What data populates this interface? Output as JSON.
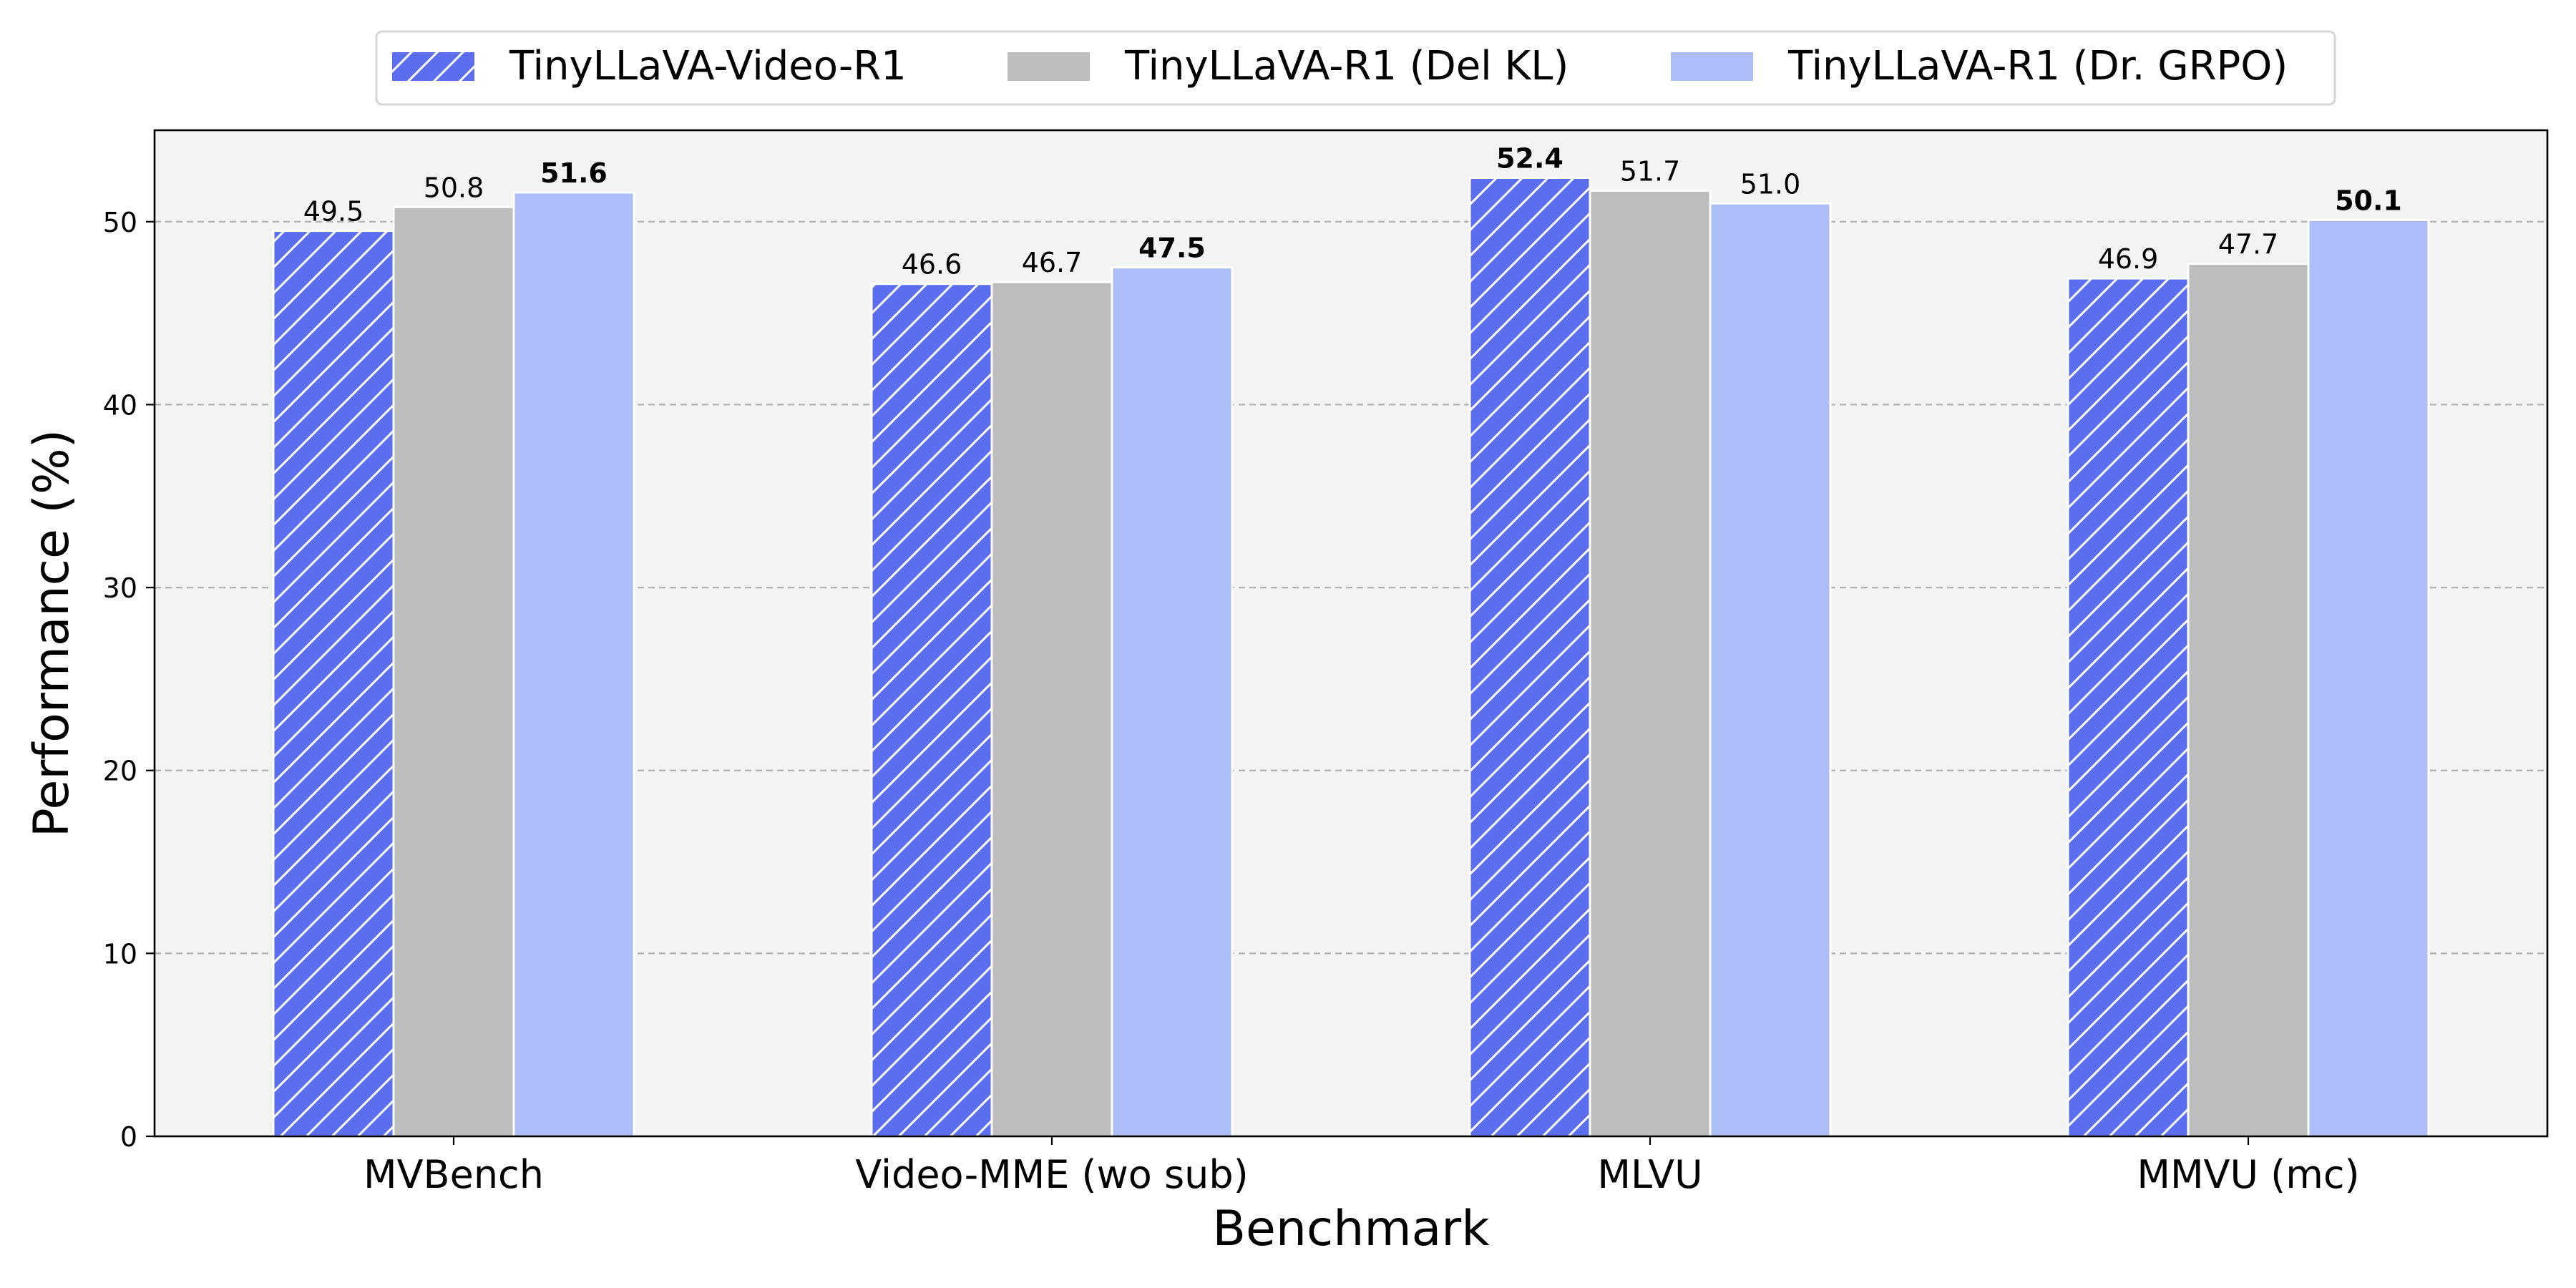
{
  "chart_data": {
    "type": "bar",
    "title": "",
    "xlabel": "Benchmark",
    "ylabel": "Performance (%)",
    "ylim": [
      0,
      55
    ],
    "yticks": [
      0,
      10,
      20,
      30,
      40,
      50
    ],
    "grid": "horizontal dashed",
    "legend_position": "top-center",
    "categories": [
      "MVBench",
      "Video-MME (wo sub)",
      "MLVU",
      "MMVU (mc)"
    ],
    "series": [
      {
        "name": "TinyLLaVA-Video-R1",
        "values": [
          49.5,
          46.6,
          52.4,
          46.9
        ],
        "labels": [
          "49.5",
          "46.6",
          "52.4",
          "46.9"
        ],
        "color": "#5b6ef0",
        "hatch": true
      },
      {
        "name": "TinyLLaVA-R1 (Del KL)",
        "values": [
          50.8,
          46.7,
          51.7,
          47.7
        ],
        "labels": [
          "50.8",
          "46.7",
          "51.7",
          "47.7"
        ],
        "color": "#bdbdbd",
        "hatch": false
      },
      {
        "name": "TinyLLaVA-R1 (Dr. GRPO)",
        "values": [
          51.6,
          47.5,
          51.0,
          50.1
        ],
        "labels": [
          "51.6",
          "47.5",
          "51.0",
          "50.1"
        ],
        "color": "#adbdf7",
        "hatch": false
      }
    ],
    "bold_labels": [
      [
        0,
        2
      ],
      [
        1,
        2
      ],
      [
        2,
        0
      ],
      [
        3,
        2
      ]
    ],
    "plot_background": "#f3f3f3"
  }
}
